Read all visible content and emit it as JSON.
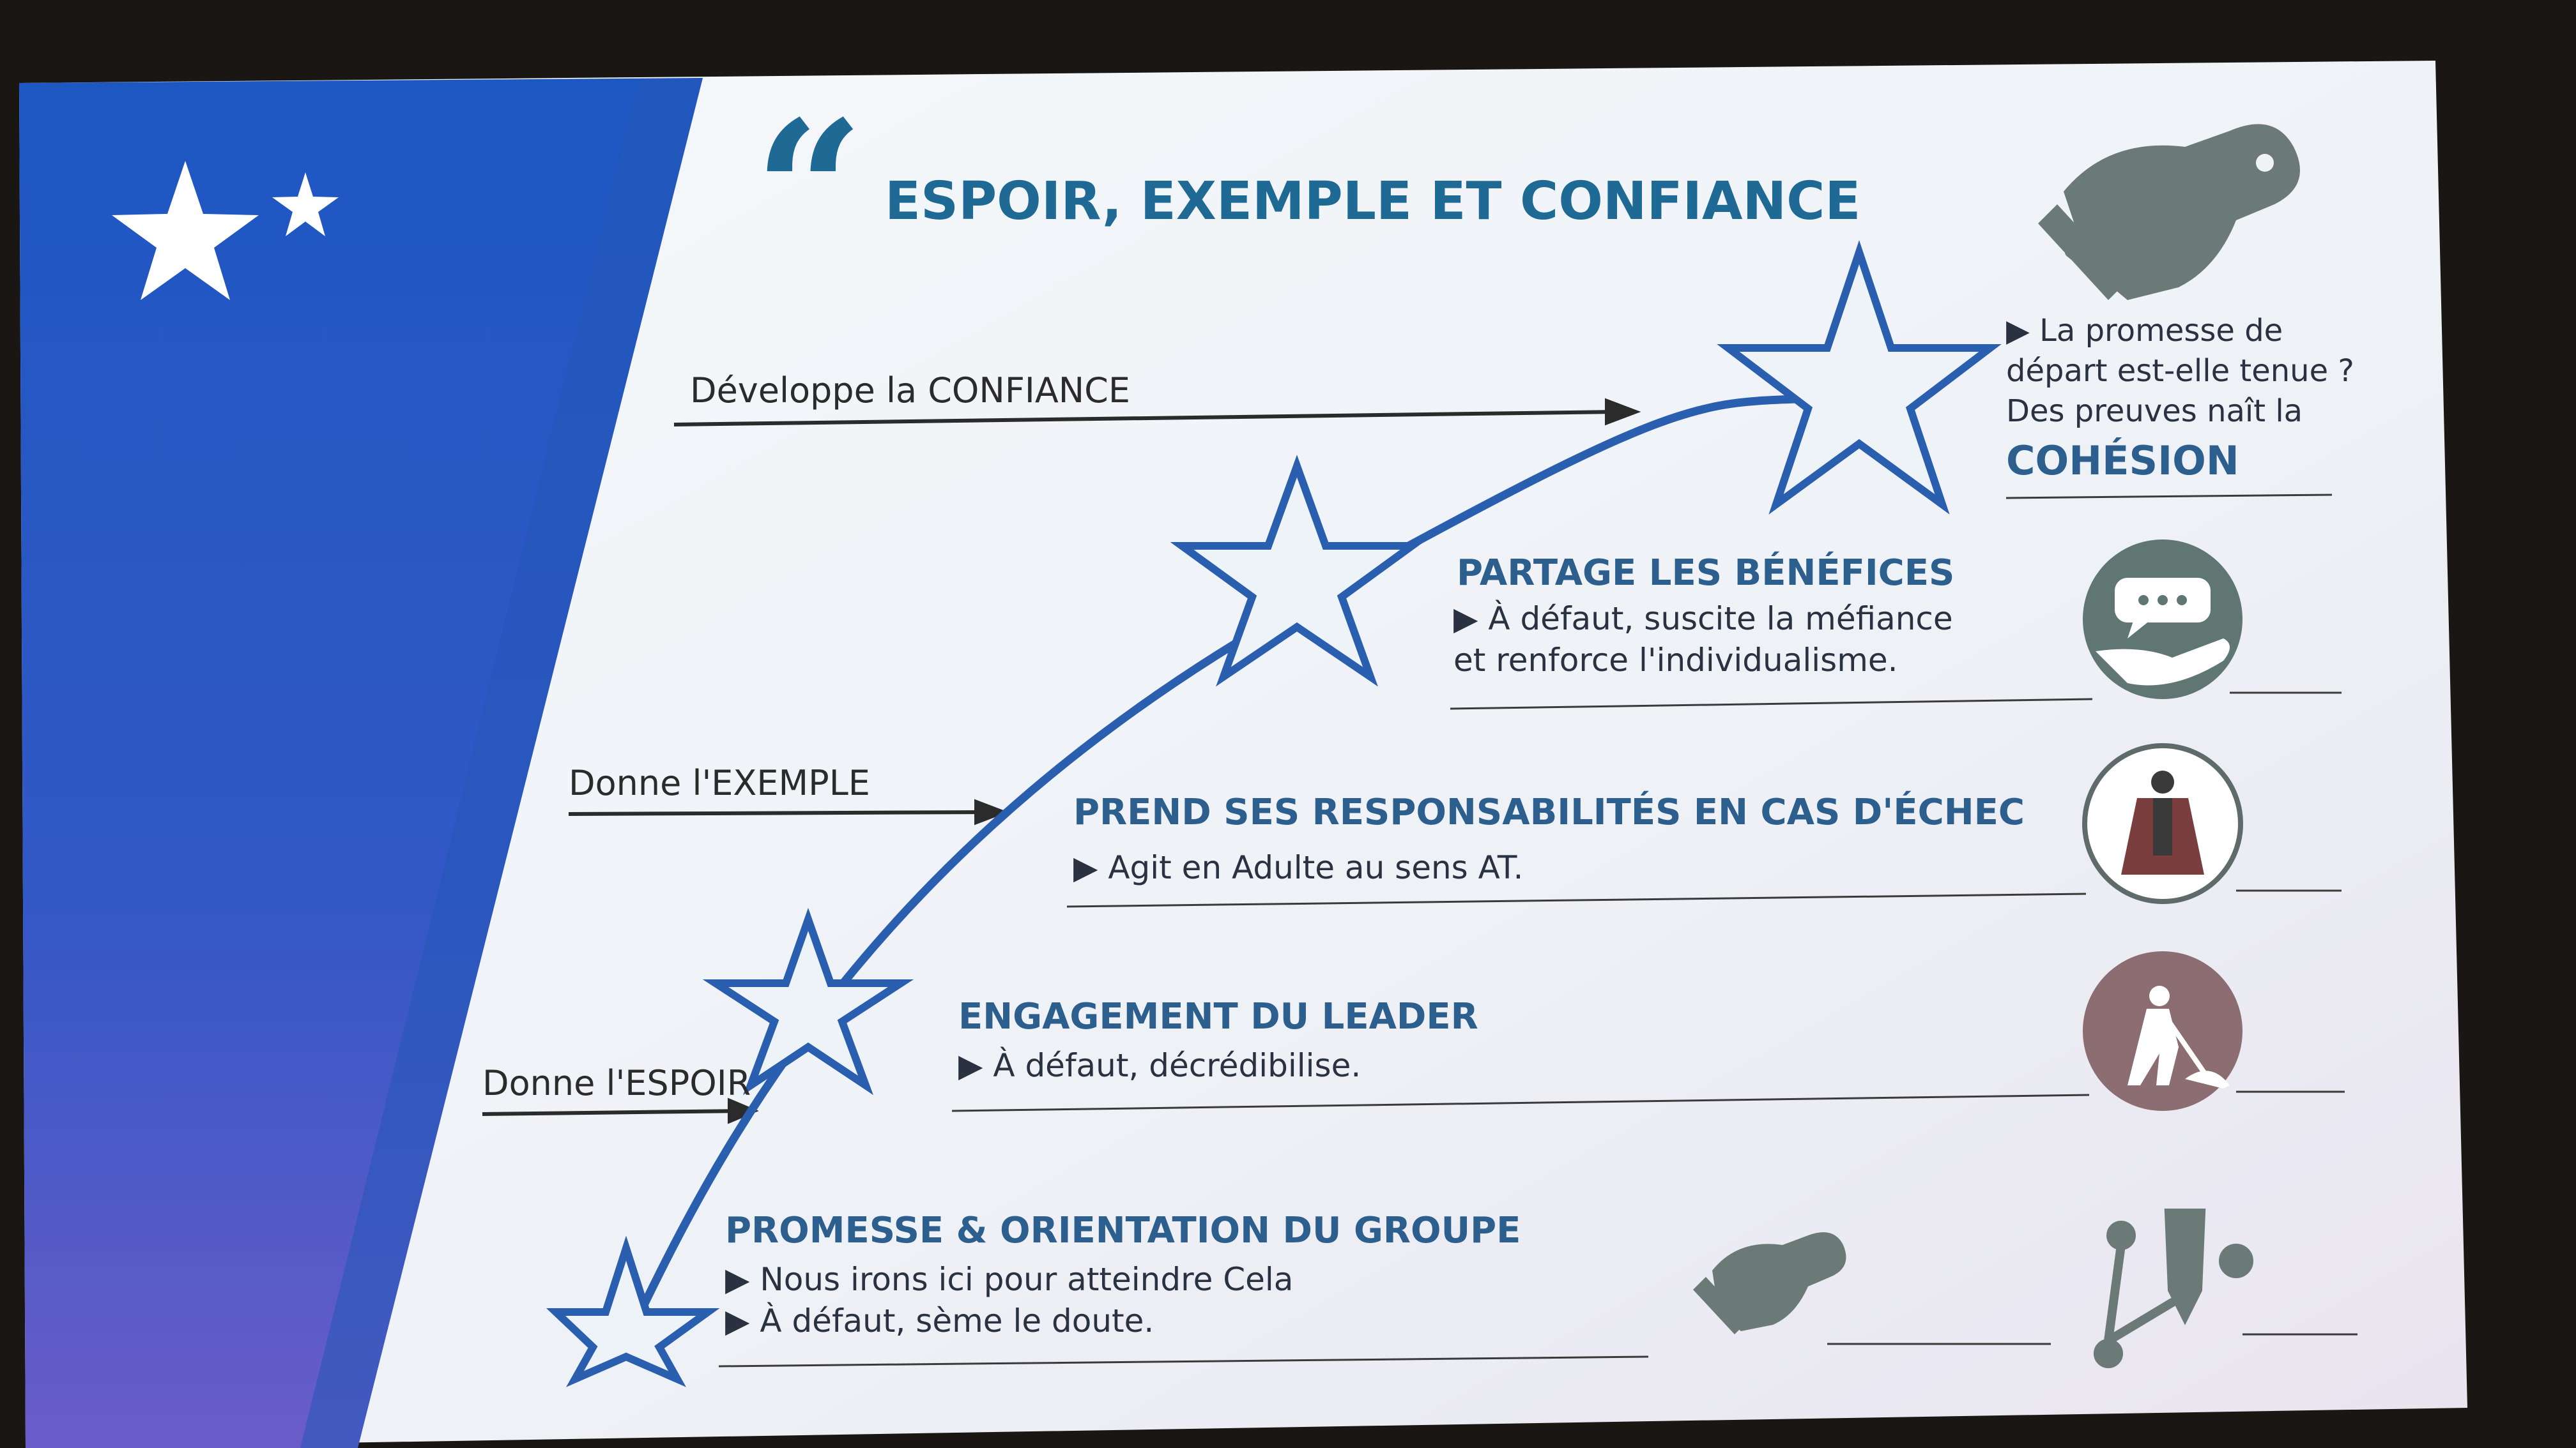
{
  "slide": {
    "title": "ESPOIR, EXEMPLE ET CONFIANCE",
    "quote_mark": "“",
    "colors": {
      "accent": "#1e6a94",
      "blue_panel": "#1d4fae",
      "star_stroke": "#2a5fb0",
      "icon_gray": "#6b7a76"
    }
  },
  "left_labels": {
    "confiance": "Développe la CONFIANCE",
    "exemple": "Donne l'EXEMPLE",
    "espoir": "Donne l'ESPOIR"
  },
  "steps": [
    {
      "heading": "PROMESSE & ORIENTATION DU GROUPE",
      "lines": [
        "▶ Nous irons ici pour atteindre Cela",
        "▶ À défaut, sème le doute."
      ]
    },
    {
      "heading": "ENGAGEMENT DU LEADER",
      "lines": [
        "▶ À défaut, décrédibilise."
      ]
    },
    {
      "heading": "PREND SES RESPONSABILITÉS EN CAS D'ÉCHEC",
      "lines": [
        "▶ Agit en Adulte au sens AT."
      ]
    },
    {
      "heading": "PARTAGE LES BÉNÉFICES",
      "lines": [
        "▶ À défaut, suscite la méfiance",
        "et renforce l'individualisme."
      ]
    }
  ],
  "top_note": {
    "lines": [
      "▶ La promesse de",
      "départ est-elle tenue ?",
      "Des preuves naît la"
    ],
    "emphasis": "COHÉSION"
  },
  "icons": [
    "handshake-icon",
    "speech-hand-icon",
    "hero-cape-icon",
    "worker-digging-icon",
    "handshake-small-icon",
    "path-pencil-icon"
  ]
}
